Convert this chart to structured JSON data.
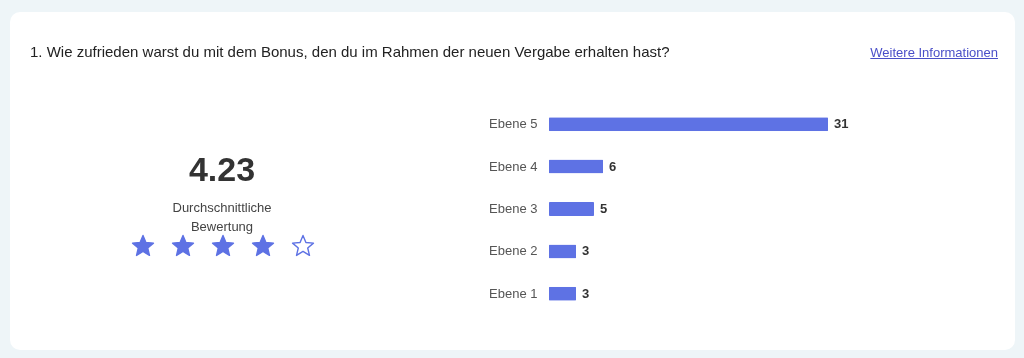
{
  "chart_data": {
    "type": "bar",
    "orientation": "horizontal",
    "title": "1. Wie zufrieden warst du mit dem Bonus, den du im Rahmen der neuen Vergabe erhalten hast?",
    "categories": [
      "Ebene 5",
      "Ebene 4",
      "Ebene 3",
      "Ebene 2",
      "Ebene 1"
    ],
    "values": [
      31,
      6,
      5,
      3,
      3
    ],
    "color": "#5e72e4",
    "data_labels": true,
    "annotations": [
      "Weitere Informationen",
      "4.23",
      "Durchschnittliche Bewertung"
    ]
  }
}
